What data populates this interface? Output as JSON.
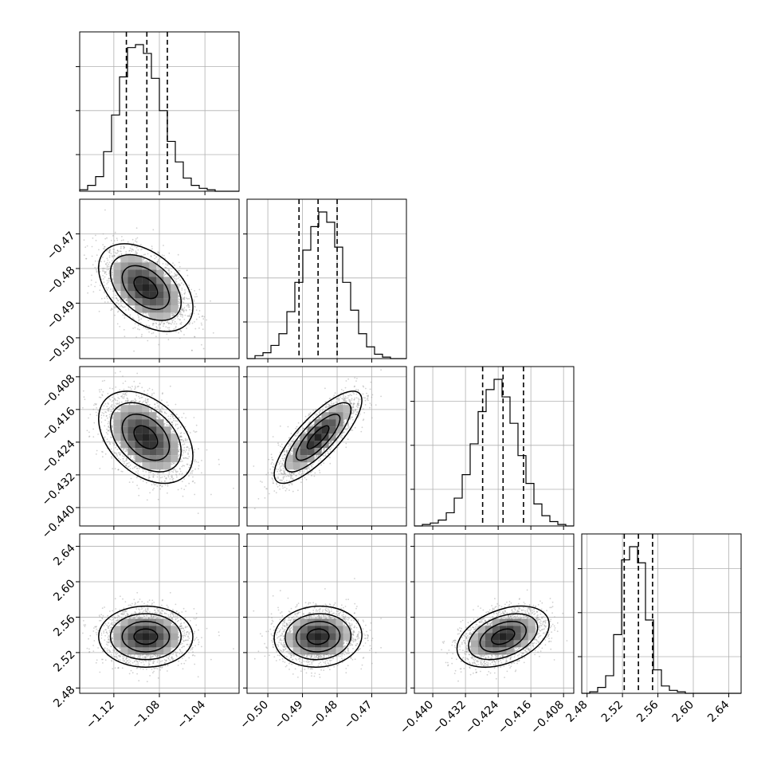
{
  "chart_data": {
    "type": "corner",
    "grid": true,
    "parameters": [
      {
        "index": 0,
        "range": [
          -1.15,
          -1.01
        ],
        "ticks": [
          "−1.12",
          "−1.08",
          "−1.04"
        ],
        "tick_values": [
          -1.12,
          -1.08,
          -1.04
        ],
        "mean": -1.092,
        "sd": 0.018,
        "quantiles": [
          -1.109,
          -1.091,
          -1.073
        ]
      },
      {
        "index": 1,
        "range": [
          -0.506,
          -0.46
        ],
        "ticks": [
          "−0.50",
          "−0.49",
          "−0.48",
          "−0.47"
        ],
        "tick_values": [
          -0.5,
          -0.49,
          -0.48,
          -0.47
        ],
        "mean": -0.4855,
        "sd": 0.0055,
        "quantiles": [
          -0.491,
          -0.4855,
          -0.48
        ]
      },
      {
        "index": 2,
        "range": [
          -0.4445,
          -0.4055
        ],
        "ticks": [
          "−0.440",
          "−0.432",
          "−0.424",
          "−0.416",
          "−0.408"
        ],
        "tick_values": [
          -0.44,
          -0.432,
          -0.424,
          -0.416,
          -0.408
        ],
        "mean": -0.4228,
        "sd": 0.0049,
        "quantiles": [
          -0.4278,
          -0.4228,
          -0.4178
        ]
      },
      {
        "index": 3,
        "range": [
          2.474,
          2.654
        ],
        "ticks": [
          "2.48",
          "2.52",
          "2.56",
          "2.60",
          "2.64"
        ],
        "tick_values": [
          2.48,
          2.52,
          2.56,
          2.6,
          2.64
        ],
        "mean": 2.538,
        "sd": 0.015,
        "quantiles": [
          2.522,
          2.538,
          2.554
        ]
      }
    ],
    "histograms": [
      {
        "param": 0,
        "bins": 20,
        "counts": [
          1,
          4,
          10,
          27,
          52,
          78,
          98,
          100,
          94,
          77,
          55,
          34,
          20,
          9,
          4,
          2,
          1,
          0,
          0,
          0
        ]
      },
      {
        "param": 1,
        "bins": 20,
        "counts": [
          0,
          2,
          4,
          9,
          17,
          32,
          52,
          74,
          90,
          100,
          93,
          76,
          52,
          33,
          17,
          8,
          3,
          1,
          0,
          0
        ]
      },
      {
        "param": 2,
        "bins": 20,
        "counts": [
          0,
          1,
          2,
          4,
          9,
          19,
          35,
          56,
          78,
          93,
          100,
          88,
          70,
          48,
          29,
          15,
          7,
          3,
          1,
          0
        ]
      },
      {
        "param": 3,
        "bins": 20,
        "counts": [
          0,
          1,
          4,
          12,
          40,
          91,
          100,
          89,
          50,
          16,
          5,
          2,
          1,
          0,
          0,
          0,
          0,
          0,
          0,
          0
        ]
      }
    ],
    "pairs": [
      {
        "x": 0,
        "y": 1,
        "correlation": -0.45
      },
      {
        "x": 0,
        "y": 2,
        "correlation": -0.4
      },
      {
        "x": 1,
        "y": 2,
        "correlation": 0.8
      },
      {
        "x": 0,
        "y": 3,
        "correlation": 0.0
      },
      {
        "x": 1,
        "y": 3,
        "correlation": 0.05
      },
      {
        "x": 2,
        "y": 3,
        "correlation": 0.4
      }
    ],
    "contour_levels_sigma": [
      0.5,
      1.0,
      1.5,
      2.0
    ]
  }
}
